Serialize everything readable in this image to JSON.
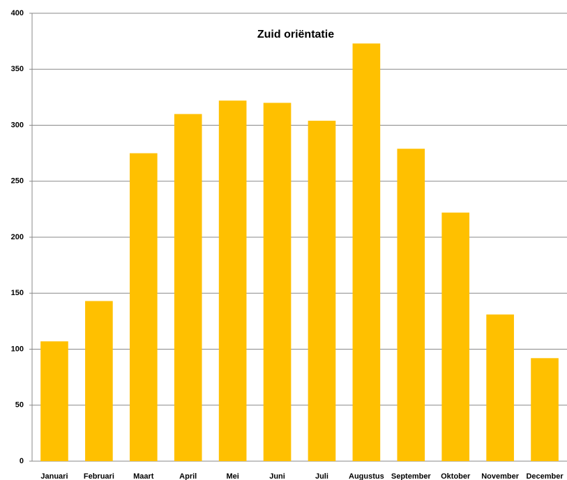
{
  "chart_data": {
    "type": "bar",
    "title": "Zuid oriëntatie",
    "categories": [
      "Januari",
      "Februari",
      "Maart",
      "April",
      "Mei",
      "Juni",
      "Juli",
      "Augustus",
      "September",
      "Oktober",
      "November",
      "December"
    ],
    "values": [
      107,
      143,
      275,
      310,
      322,
      320,
      304,
      373,
      279,
      222,
      131,
      92
    ],
    "color": "#ffc000",
    "ylim": [
      0,
      400
    ],
    "yticks": [
      0,
      50,
      100,
      150,
      200,
      250,
      300,
      350,
      400
    ],
    "grid": true
  }
}
